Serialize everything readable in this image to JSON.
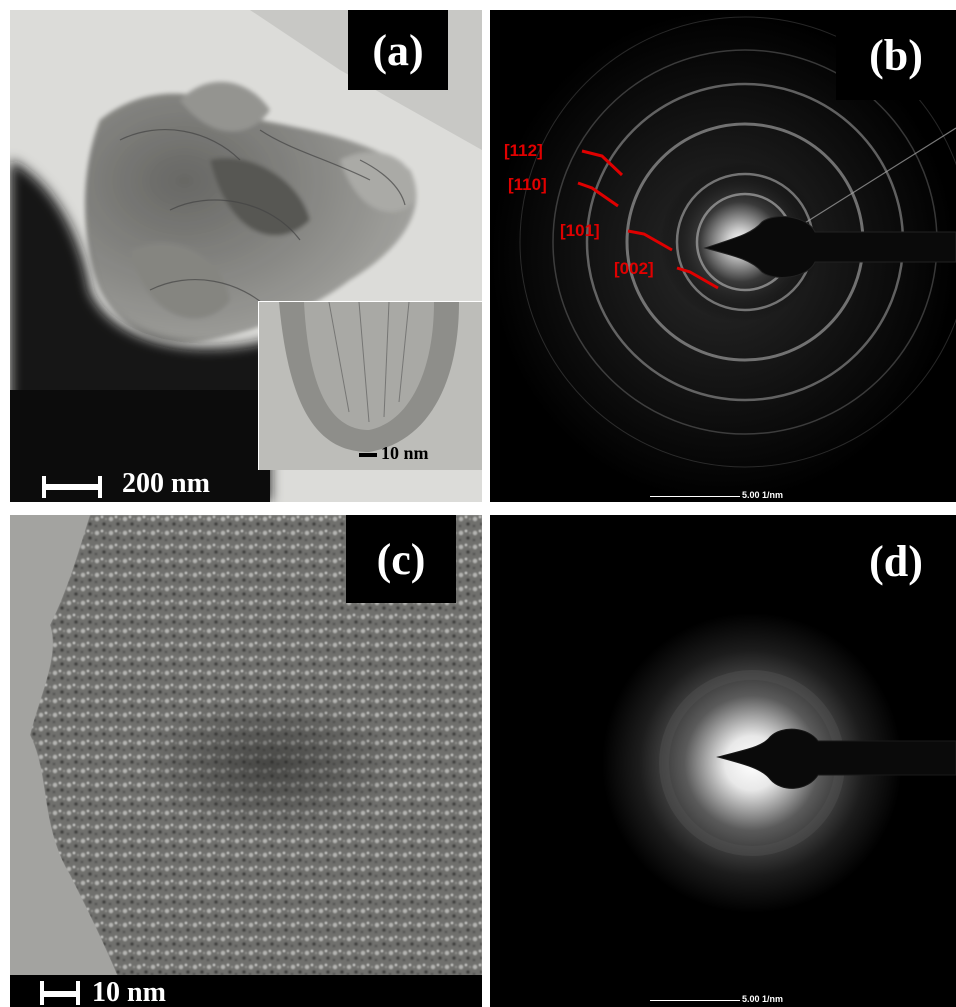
{
  "panels": {
    "a": {
      "label": "(a)",
      "scale_main": "200 nm",
      "scale_inset": "10 nm"
    },
    "b": {
      "label": "(b)",
      "scale": "5.00 1/nm",
      "rings": [
        "[112]",
        "[110]",
        "[101]",
        "[002]"
      ],
      "ring_color": "#e00000"
    },
    "c": {
      "label": "(c)",
      "scale": "10 nm"
    },
    "d": {
      "label": "(d)",
      "scale": "5.00 1/nm"
    }
  }
}
